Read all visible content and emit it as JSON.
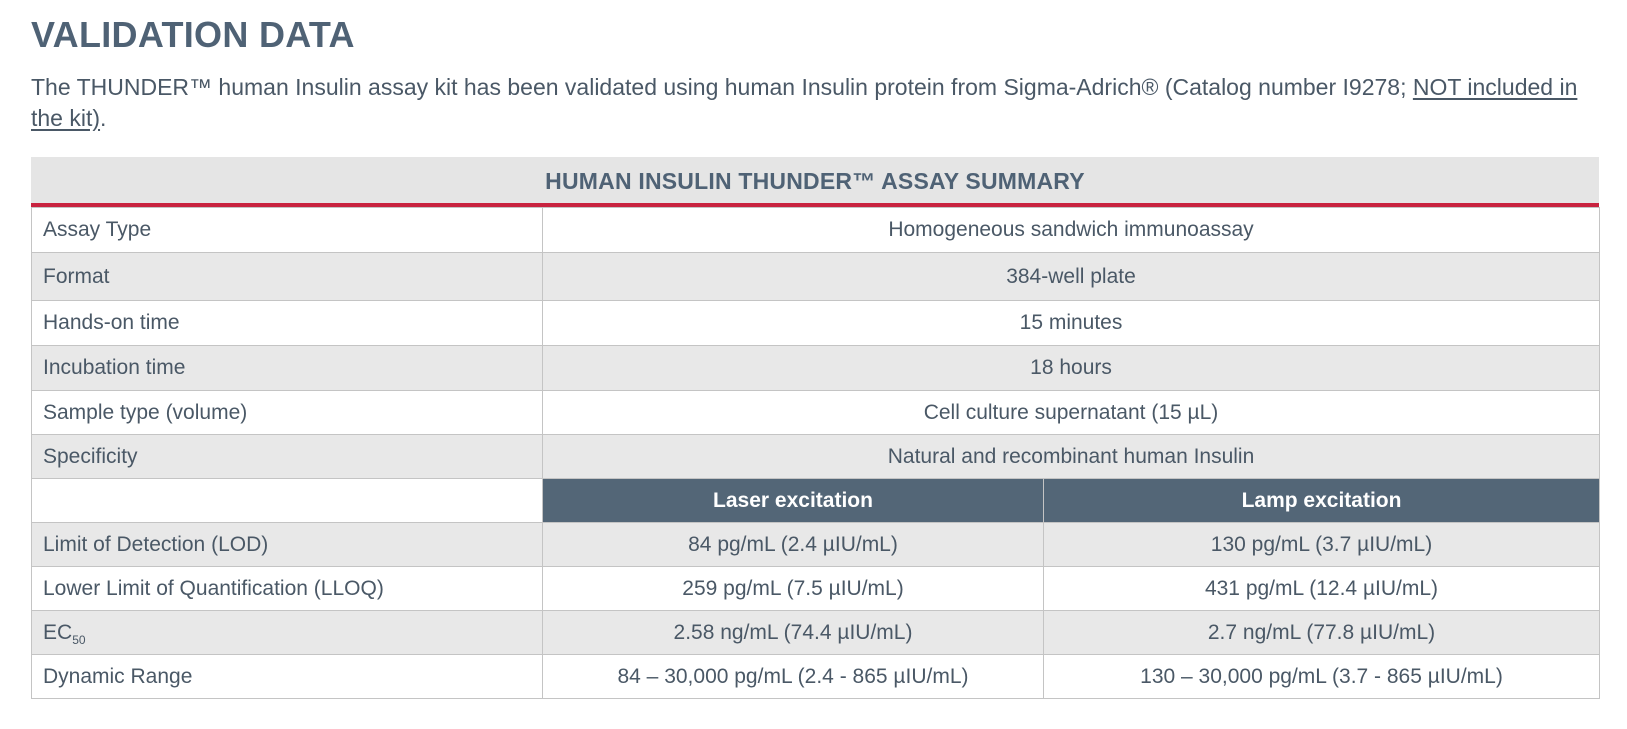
{
  "title": "VALIDATION DATA",
  "intro": {
    "text_main": "The THUNDER™ human Insulin assay kit has been validated using human Insulin protein from Sigma-Adrich® (Catalog number  I9278; ",
    "text_underlined": "NOT included in the kit)",
    "text_end": "."
  },
  "table": {
    "caption": "HUMAN INSULIN THUNDER™ ASSAY SUMMARY",
    "rows": [
      {
        "label": "Assay Type",
        "value": "Homogeneous sandwich immunoassay"
      },
      {
        "label": "Format",
        "value": "384-well plate"
      },
      {
        "label": "Hands-on time",
        "value": "15 minutes"
      },
      {
        "label": "Incubation time",
        "value": "18 hours"
      },
      {
        "label": "Sample type (volume)",
        "value": "Cell culture supernatant (15 µL)"
      },
      {
        "label": "Specificity",
        "value": "Natural and recombinant human Insulin"
      }
    ],
    "column_headers": [
      "Laser excitation",
      "Lamp excitation"
    ],
    "split_rows": [
      {
        "label": "Limit of Detection (LOD)",
        "laser": "84 pg/mL (2.4 µIU/mL)",
        "lamp": "130 pg/mL (3.7 µIU/mL)"
      },
      {
        "label": "Lower Limit of Quantification (LLOQ)",
        "laser": "259 pg/mL (7.5 µIU/mL)",
        "lamp": "431 pg/mL (12.4 µIU/mL)"
      },
      {
        "label": "EC",
        "label_sub": "50",
        "laser": "2.58 ng/mL (74.4 µIU/mL)",
        "lamp": "2.7 ng/mL (77.8 µIU/mL)"
      },
      {
        "label": "Dynamic Range",
        "laser": "84 – 30,000 pg/mL (2.4 - 865 µIU/mL)",
        "lamp": "130 – 30,000 pg/mL (3.7 - 865 µIU/mL)"
      }
    ]
  },
  "colors": {
    "heading": "#4f6275",
    "accent_red": "#c8233f",
    "header_cell": "#536677",
    "row_grey": "#e8e8e8"
  }
}
